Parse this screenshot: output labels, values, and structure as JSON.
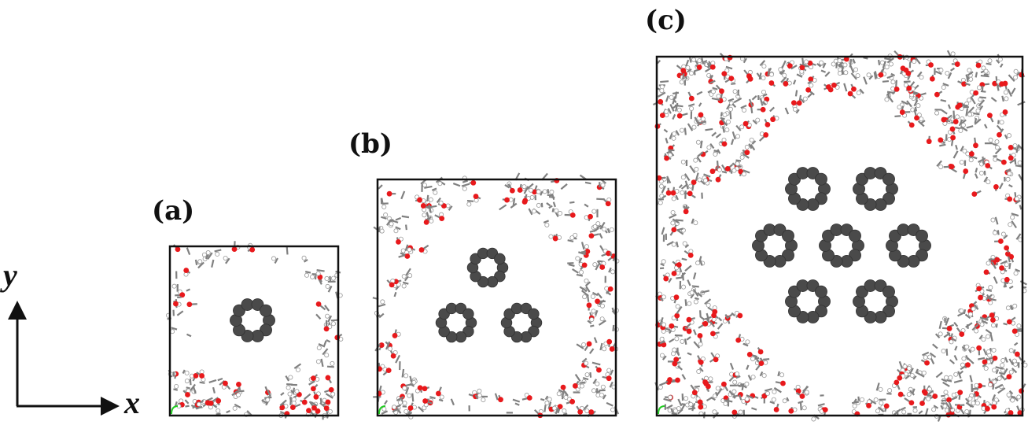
{
  "panels": [
    {
      "label": "(a)",
      "rings": 1
    },
    {
      "label": "(b)",
      "rings": 3
    },
    {
      "label": "(c)",
      "rings": 7
    }
  ],
  "axes": {
    "x_label": "x",
    "y_label": "y"
  },
  "colors": {
    "oxygen": "#e8191c",
    "carbon": "#808080",
    "hydrogen": "#ffffff",
    "ring": "#4a4a4a",
    "box": "#111111"
  }
}
